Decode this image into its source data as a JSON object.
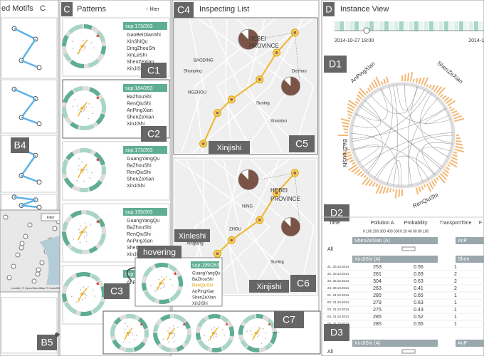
{
  "motifs": {
    "title": "ed Motifs",
    "icon": "C",
    "label_b4": "B4",
    "label_b5": "B5",
    "map_filter": "Filter",
    "map_attribution": "Leaflet | © OpenStreetMap © CartoDB"
  },
  "patterns": {
    "panel_label": "C",
    "title": "Patterns",
    "filter": "↑ filter",
    "cards": [
      {
        "support": "sup:173/263",
        "names": [
          "GaoBeiDianShi",
          "XinShiQu",
          "DingZhouShi",
          "XinLeShi",
          "ShenZeXian",
          "XinJiShi"
        ]
      },
      {
        "support": "sup:184/263",
        "names": [
          "BaZhouShi",
          "RenQiuShi",
          "AnPingXian",
          "ShenZeXian",
          "XinJiShi"
        ]
      },
      {
        "support": "sup:173/263",
        "names": [
          "GuangYangQu",
          "BaZhouShi",
          "RenQiuShi",
          "ShenZeXian",
          "XinJiShi"
        ]
      },
      {
        "support": "sup:199/263",
        "names": [
          "GuangYangQu",
          "BaZhouShi",
          "RenQiuShi",
          "AnPingXian",
          "Shen",
          "XinJiShi"
        ]
      },
      {
        "support": "sup:1",
        "names": [
          "AnPi"
        ]
      }
    ],
    "labels": [
      "C1",
      "C2",
      "C3"
    ]
  },
  "inspecting": {
    "panel_label": "C4",
    "title": "Inspecting List",
    "map1": {
      "label": "C5",
      "place": "Xinjishi",
      "texts": [
        "HEBEI",
        "PROVINCE",
        "BAODING",
        "Shunping",
        "NGZHOU",
        "Suning",
        "Xianxian",
        "Dezhou"
      ]
    },
    "map2": {
      "label": "C6",
      "places": [
        "Xinleshi",
        "Xinjishi"
      ],
      "texts": [
        "HEBEI",
        "PROVINCE",
        "NING",
        "ZHOU",
        "Xingtang",
        "Suning"
      ]
    }
  },
  "hover": {
    "tag": "hovering",
    "support": "sup:199/263",
    "names": [
      "GuangYangQu",
      "BaZhouShi",
      "RenQiuShi",
      "AnPingXian",
      "ShenZeXian",
      "XinJiShi"
    ]
  },
  "strip": {
    "label": "C7",
    "more": "..."
  },
  "instance": {
    "panel_label": "D",
    "title": "Instance View",
    "time_start": "2014-10-27 19:00",
    "time_end": "2014-1",
    "chord_label": "D1",
    "chord_names": [
      "AnPingXian",
      "ShenZeXian",
      "BaZhouShi",
      "RenQiuShi"
    ],
    "table_label": "D2",
    "detail_label": "D3",
    "headers": [
      "Time",
      "Pollution A",
      "Probability",
      "TransportTime",
      "F"
    ],
    "axis_a": "0 100 200 300 400 500",
    "axis_b": "0 20 40 60 80 100",
    "groups": [
      "ShenZeXian (A)",
      "AnP",
      "XinJiShi (A)",
      "Shen",
      "XinJiShi (A)",
      "AnP"
    ],
    "all": "All",
    "rows": [
      [
        "21. 30.10.2014",
        "253",
        "0.56",
        "1"
      ],
      [
        "22. 30.10.2014",
        "281",
        "0.69",
        "2"
      ],
      [
        "23. 30.10.2014",
        "304",
        "0.63",
        "2"
      ],
      [
        "24. 30.10.2014",
        "263",
        "0.41",
        "2"
      ],
      [
        "01. 31.10.2014",
        "285",
        "0.65",
        "1"
      ],
      [
        "02. 31.10.2014",
        "279",
        "0.63",
        "1"
      ],
      [
        "03. 31.10.2014",
        "275",
        "0.43",
        "1"
      ],
      [
        "04. 31.10.2014",
        "285",
        "0.52",
        "1"
      ],
      [
        "05. 31.10.2014",
        "285",
        "0.55",
        "1"
      ]
    ]
  }
}
